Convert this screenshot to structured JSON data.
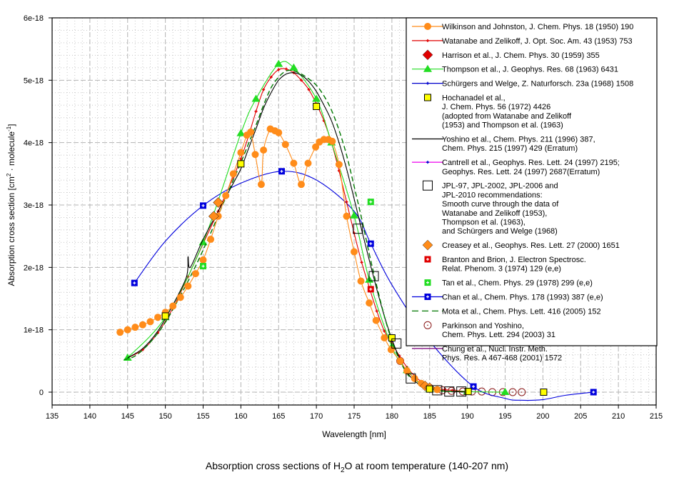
{
  "chart_data": {
    "type": "line",
    "title": "",
    "caption": {
      "prefix": "Absorption cross sections of H",
      "sub": "2",
      "suffix": "O at room temperature (140-207 nm)"
    },
    "xlabel": "Wavelength [nm]",
    "ylabel": {
      "prefix": "Absorption cross section [cm",
      "sup1": "2",
      "middle": " · molecule",
      "sup2": "-1",
      "suffix": "]"
    },
    "xlim": [
      135,
      215
    ],
    "ylim": [
      0,
      6e-18
    ],
    "xticks": [
      135,
      140,
      145,
      150,
      155,
      160,
      165,
      170,
      175,
      180,
      185,
      190,
      195,
      200,
      205,
      210,
      215
    ],
    "xtick_labels": [
      "135",
      "140",
      "145",
      "150",
      "155",
      "160",
      "165",
      "170",
      "175",
      "180",
      "185",
      "190",
      "195",
      "200",
      "205",
      "210",
      "215"
    ],
    "yticks": [
      0,
      1e-18,
      2e-18,
      3e-18,
      4e-18,
      5e-18,
      6e-18
    ],
    "ytick_labels": [
      "0",
      "1e-18",
      "2e-18",
      "3e-18",
      "4e-18",
      "5e-18",
      "6e-18"
    ],
    "grid": true,
    "legend_position": "top-right",
    "units_y": "1e-18",
    "series": [
      {
        "name": "Wilkinson and Johnston, J. Chem. Phys. 18 (1950) 190",
        "legend_lines": [
          "Wilkinson and Johnston, J. Chem. Phys. 18 (1950) 190"
        ],
        "color": "#ff8c1a",
        "line": "solid",
        "marker": "circle",
        "x": [
          144,
          145,
          146,
          147,
          148,
          149,
          150,
          151,
          152,
          153,
          154,
          155,
          156,
          157,
          158,
          159,
          160,
          160.8,
          161.3,
          161.9,
          162.7,
          163.0,
          163.9,
          164.5,
          165.0,
          165.9,
          167.0,
          168.0,
          168.9,
          169.9,
          170.4,
          171.0,
          171.6,
          172.1,
          173.0,
          174.0,
          175.0,
          175.9,
          177.0,
          177.9,
          179.0,
          179.9,
          181.1,
          182.0,
          183.0,
          183.9,
          185.0,
          186.0
        ],
        "y": [
          0.96,
          1.0,
          1.04,
          1.08,
          1.13,
          1.2,
          1.28,
          1.38,
          1.52,
          1.7,
          1.9,
          2.12,
          2.45,
          2.82,
          3.15,
          3.5,
          3.84,
          4.12,
          4.17,
          3.81,
          3.33,
          3.88,
          4.22,
          4.19,
          4.16,
          3.97,
          3.67,
          3.33,
          3.67,
          3.93,
          4.01,
          4.05,
          4.05,
          4.02,
          3.65,
          2.82,
          2.25,
          1.78,
          1.43,
          1.15,
          0.87,
          0.68,
          0.5,
          0.34,
          0.22,
          0.14,
          0.07,
          0.04
        ]
      },
      {
        "name": "Watanabe and Zelikoff, J. Opt. Soc. Am. 43 (1953) 753",
        "legend_lines": [
          "Watanabe and Zelikoff, J. Opt. Soc. Am. 43 (1953) 753"
        ],
        "color": "#e00000",
        "line": "solid",
        "marker": "small-cross",
        "x": [
          145,
          147,
          149,
          151,
          153,
          155,
          157,
          159,
          160,
          161,
          162,
          163,
          164,
          165,
          166,
          167,
          168,
          169,
          170,
          171,
          172,
          173,
          174,
          175,
          176,
          177,
          178,
          179,
          180,
          181,
          182,
          183,
          184,
          185,
          186,
          187,
          188,
          190
        ],
        "y": [
          0.55,
          0.68,
          0.95,
          1.35,
          1.85,
          2.38,
          2.9,
          3.45,
          3.74,
          4.1,
          4.5,
          4.85,
          5.05,
          5.17,
          5.18,
          5.12,
          5.0,
          4.85,
          4.62,
          4.35,
          4.0,
          3.55,
          3.05,
          2.55,
          2.08,
          1.68,
          1.3,
          0.98,
          0.78,
          0.58,
          0.4,
          0.26,
          0.16,
          0.1,
          0.06,
          0.04,
          0.03,
          0.01
        ]
      },
      {
        "name": "Harrison et al., J. Chem. Phys. 30 (1959) 355",
        "legend_lines": [
          "Harrison et al., J. Chem. Phys. 30 (1959) 355"
        ],
        "color": "#e00000",
        "line": "none",
        "marker": "diamond",
        "x": [
          156.4,
          157.0
        ],
        "y": [
          2.82,
          3.04
        ]
      },
      {
        "name": "Thompson et al., J. Geophys. Res. 68 (1963) 6431",
        "legend_lines": [
          "Thompson et al., J. Geophys. Res. 68 (1963) 6431"
        ],
        "color": "#22dd22",
        "line": "solid",
        "marker": "triangle",
        "x": [
          145,
          150,
          155,
          160,
          162,
          165,
          167,
          170,
          172,
          175,
          177,
          180,
          182,
          185,
          190,
          195
        ],
        "y": [
          0.55,
          1.2,
          2.4,
          4.15,
          4.7,
          5.26,
          5.2,
          4.7,
          4.0,
          2.83,
          1.8,
          0.73,
          0.35,
          0.05,
          0.01,
          0.0
        ]
      },
      {
        "name": "Schürgers and Welge, Z. Naturforsch. 23a (1968) 1508",
        "legend_lines": [
          "Schürgers and Welge, Z. Naturforsch. 23a (1968) 1508"
        ],
        "color": "#0000cc",
        "line": "solid",
        "marker": "small-cross",
        "x": [],
        "y": []
      },
      {
        "name": "Hochanadel et al., J. Chem. Phys. 56 (1972) 4426 (adopted from Watanabe and Zelikoff (1953) and Thompson et al. (1963)",
        "legend_lines": [
          "Hochanadel et al.,",
          "J. Chem. Phys. 56 (1972) 4426",
          "(adopted from Watanabe and Zelikoff",
          "(1953) and Thompson et al. (1963)"
        ],
        "color": "#ffff00",
        "line": "none",
        "marker": "square-filled",
        "x": [
          150,
          160,
          170,
          180,
          185,
          190.1,
          200.1
        ],
        "y": [
          1.22,
          3.66,
          4.58,
          0.87,
          0.05,
          0.01,
          0.0
        ]
      },
      {
        "name": "Yoshino et al., Chem. Phys. 211 (1996) 387, Chem. Phys. 215 (1997) 429 (Erratum)",
        "legend_lines": [
          "Yoshino et al., Chem. Phys. 211 (1996) 387,",
          "Chem. Phys. 215 (1997) 429 (Erratum)"
        ],
        "color": "#000000",
        "line": "solid",
        "marker": "none",
        "x": [
          145,
          147,
          149,
          151,
          152.8,
          153.0,
          153.3,
          155,
          157,
          159,
          160,
          161,
          162,
          163,
          164,
          165,
          166,
          167,
          168,
          169,
          170,
          171,
          172,
          173,
          174,
          175,
          176,
          177,
          178,
          179,
          180,
          181,
          182,
          183,
          184,
          185,
          186,
          188,
          190
        ],
        "y": [
          0.55,
          0.7,
          0.98,
          1.4,
          1.85,
          2.17,
          2.0,
          2.45,
          2.9,
          3.35,
          3.58,
          3.9,
          4.22,
          4.55,
          4.8,
          5.0,
          5.1,
          5.12,
          5.08,
          4.98,
          4.82,
          4.6,
          4.35,
          4.0,
          3.58,
          3.1,
          2.6,
          2.12,
          1.65,
          1.22,
          0.85,
          0.55,
          0.32,
          0.18,
          0.1,
          0.06,
          0.03,
          0.01,
          0.0
        ]
      },
      {
        "name": "Cantrell et al., Geophys. Res. Lett. 24 (1997) 2195; Geophys. Res. Lett. 24 (1997) 2687(Erratum)",
        "legend_lines": [
          "Cantrell et al., Geophys. Res. Lett. 24 (1997) 2195;",
          "Geophys. Res. Lett. 24 (1997) 2687(Erratum)"
        ],
        "color": "#ee00ee",
        "line": "solid",
        "marker": "small-cross-blue",
        "x": [],
        "y": []
      },
      {
        "name": "JPL-97, JPL-2002, JPL-2006 and JPL-2010 recommendations: Smooth curve through the data of Watanabe and Zelikoff (1953), Thompson et al. (1963), and Schürgers and Welge (1968)",
        "legend_lines": [
          "JPL-97, JPL-2002, JPL-2006 and",
          "JPL-2010 recommendations:",
          "Smooth curve through the data of",
          "Watanabe and Zelikoff (1953),",
          "Thompson et al. (1963),",
          "and Schürgers and Welge (1968)"
        ],
        "color": "#000000",
        "line": "none",
        "marker": "square-open",
        "x": [
          175.5,
          177.6,
          180.6,
          182.5,
          186.0,
          187.6,
          189.2
        ],
        "y": [
          2.62,
          1.86,
          0.78,
          0.22,
          0.03,
          0.01,
          0.01
        ]
      },
      {
        "name": "Creasey et al., Geophys. Res. Lett. 27 (2000) 1651",
        "legend_lines": [
          "Creasey et al., Geophys. Res. Lett. 27 (2000) 1651"
        ],
        "color": "#ff8c1a",
        "line": "none",
        "marker": "diamond",
        "x": [
          156.4,
          157.0,
          184.4,
          185.0
        ],
        "y": [
          2.82,
          3.04,
          0.1,
          0.07
        ]
      },
      {
        "name": "Branton and Brion, J. Electron Spectrosc. Relat. Phenom. 3 (1974) 129 (e,e)",
        "legend_lines": [
          "Branton and Brion, J. Electron Spectrosc.",
          "Relat. Phenom. 3 (1974) 129 (e,e)"
        ],
        "color": "#e00000",
        "line": "none",
        "marker": "square-plus",
        "x": [
          177.2
        ],
        "y": [
          1.65
        ]
      },
      {
        "name": "Tan et al., Chem. Phys. 29 (1978) 299 (e,e)",
        "legend_lines": [
          "Tan et al., Chem. Phys. 29 (1978) 299 (e,e)"
        ],
        "color": "#22dd22",
        "line": "none",
        "marker": "square-plus",
        "x": [
          155.0,
          177.2
        ],
        "y": [
          2.02,
          3.05
        ]
      },
      {
        "name": "Chan et al., Chem. Phys. 178 (1993) 387 (e,e)",
        "legend_lines": [
          "Chan et al., Chem. Phys. 178 (1993) 387 (e,e)"
        ],
        "color": "#0000dd",
        "line": "smooth",
        "marker": "square-plus",
        "x": [
          145.9,
          150,
          155.0,
          160,
          165.4,
          170,
          175,
          177.2,
          180,
          185,
          190.8,
          195,
          197,
          200,
          203,
          206.7
        ],
        "y": [
          1.75,
          2.42,
          2.99,
          3.35,
          3.54,
          3.4,
          2.9,
          2.38,
          1.72,
          0.82,
          0.09,
          -0.1,
          -0.13,
          -0.12,
          -0.05,
          0.0
        ],
        "marker_x": [
          145.9,
          155.0,
          165.4,
          177.2,
          190.8,
          206.7
        ],
        "marker_y": [
          1.75,
          2.99,
          3.54,
          2.38,
          0.09,
          0.0
        ]
      },
      {
        "name": "Mota et al., Chem. Phys. Lett. 416 (2005) 152",
        "legend_lines": [
          "Mota et al., Chem. Phys. Lett. 416 (2005) 152"
        ],
        "color": "#007700",
        "line": "dashed",
        "marker": "none",
        "x": [
          144.5,
          146,
          148,
          150,
          152,
          154,
          156,
          158,
          160,
          161,
          162,
          163,
          164,
          165,
          166,
          167,
          168,
          169,
          170,
          171,
          172,
          173,
          174,
          175,
          176,
          177,
          178,
          179,
          180,
          181,
          182,
          183,
          184,
          185,
          186,
          188
        ],
        "y": [
          0.52,
          0.58,
          0.8,
          1.12,
          1.55,
          2.02,
          2.55,
          3.12,
          3.68,
          3.98,
          4.28,
          4.6,
          4.88,
          5.05,
          5.15,
          5.15,
          5.1,
          5.02,
          4.92,
          4.75,
          4.52,
          4.2,
          3.8,
          3.3,
          2.78,
          2.22,
          1.7,
          1.22,
          0.82,
          0.52,
          0.3,
          0.17,
          0.1,
          0.06,
          0.03,
          0.01
        ]
      },
      {
        "name": "Parkinson and Yoshino, Chem. Phys. Lett. 294 (2003) 31",
        "legend_lines": [
          "Parkinson and Yoshino,",
          "Chem. Phys. Lett. 294 (2003) 31"
        ],
        "color": "#8b1a1a",
        "line": "none",
        "marker": "circle-open-dot",
        "x": [
          181.1,
          185,
          186.7,
          187.9,
          189.4,
          190.6,
          191.9,
          193.3,
          194.7,
          196.0,
          197.2
        ],
        "y": [
          0.5,
          0.07,
          0.03,
          0.02,
          0.01,
          0.01,
          0.01,
          0.0,
          0.0,
          0.0,
          0.0
        ]
      },
      {
        "name": "Chung et al., Nucl. Instr. Meth. Phys. Res. A 467-468 (2001) 1572",
        "legend_lines": [
          "Chung et al., Nucl. Instr. Meth.",
          "Phys. Res. A 467-468 (2001) 1572"
        ],
        "color": "#7a007a",
        "line": "solid",
        "marker": "none",
        "x": [
          140,
          140.3,
          140.6,
          141,
          141.4,
          141.8,
          142.2,
          142.6,
          143,
          143.4,
          143.8,
          144.2,
          144.6,
          145,
          146,
          147,
          148,
          149,
          150,
          151,
          152,
          153,
          154,
          155,
          156,
          157,
          158,
          159,
          160,
          161,
          162,
          163,
          164,
          165,
          166,
          167,
          168,
          169,
          170,
          171,
          172,
          173,
          174,
          175,
          176,
          177,
          178,
          179,
          180,
          181,
          182,
          183,
          184,
          185,
          186,
          188,
          190
        ],
        "y": [
          0.78,
          0.7,
          0.82,
          0.72,
          0.62,
          0.55,
          0.62,
          0.53,
          0.58,
          0.55,
          0.6,
          0.56,
          0.57,
          0.58,
          0.68,
          0.8,
          1.02,
          1.3,
          1.58,
          1.85,
          2.15,
          2.45,
          2.72,
          3.0,
          3.25,
          3.52,
          3.82,
          4.12,
          4.4,
          4.68,
          4.92,
          5.15,
          5.32,
          5.4,
          5.42,
          5.41,
          5.4,
          5.35,
          5.25,
          5.1,
          4.9,
          4.62,
          4.22,
          3.75,
          3.2,
          2.62,
          2.05,
          1.52,
          1.05,
          0.68,
          0.4,
          0.22,
          0.12,
          0.07,
          0.04,
          0.01,
          0.0
        ]
      }
    ]
  }
}
